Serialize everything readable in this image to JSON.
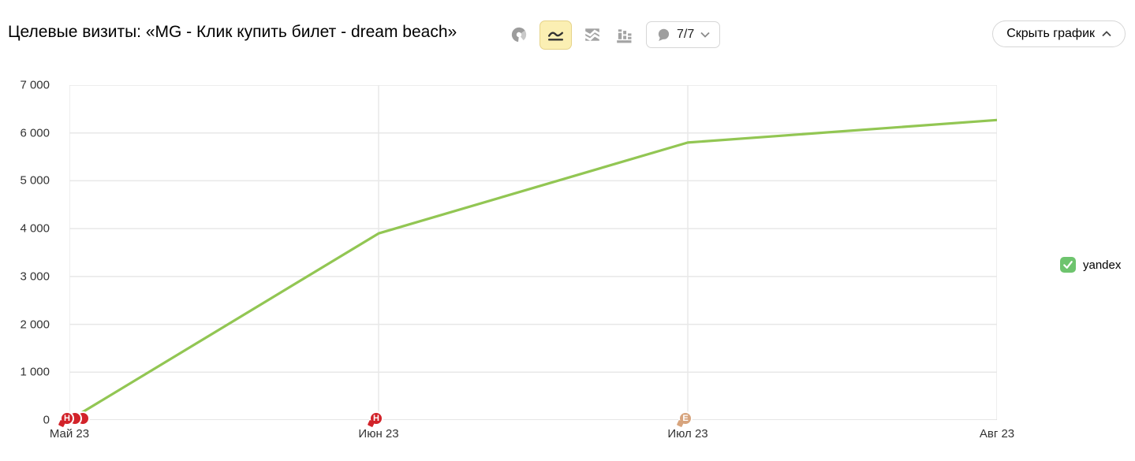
{
  "header": {
    "title": "Целевые визиты: «MG - Клик купить билет - dream beach»",
    "toolbar": {
      "chart_type_buttons": [
        {
          "name": "pie-chart",
          "active": false
        },
        {
          "name": "line-chart",
          "active": true
        },
        {
          "name": "stacked-area-chart",
          "active": false
        },
        {
          "name": "bar-chart",
          "active": false
        }
      ],
      "comments_dropdown_label": "7/7",
      "hide_chart_button_label": "Скрыть график"
    }
  },
  "legend": {
    "items": [
      {
        "label": "yandex",
        "checked": true,
        "color": "#6ec46e"
      }
    ]
  },
  "chart_data": {
    "type": "line",
    "title": "Целевые визиты: «MG - Клик купить билет - dream beach»",
    "x": [
      "Май 23",
      "Июн 23",
      "Июл 23",
      "Авг 23"
    ],
    "series": [
      {
        "name": "yandex",
        "color": "#92c653",
        "values": [
          0,
          3900,
          5800,
          6270
        ]
      }
    ],
    "ylim": [
      0,
      7000
    ],
    "ytick_step": 1000,
    "ytick_labels": [
      "0",
      "1 000",
      "2 000",
      "3 000",
      "4 000",
      "5 000",
      "6 000",
      "7 000"
    ],
    "grid": true,
    "legend_position": "right",
    "comment_markers": [
      {
        "x_index": 0,
        "letter": "Н",
        "color": "#d2232a",
        "count": 3
      },
      {
        "x_index": 1,
        "letter": "Н",
        "color": "#d2232a",
        "count": 1
      },
      {
        "x_index": 2,
        "letter": "Е",
        "color": "#d7a47d",
        "count": 1
      }
    ],
    "grid_color": "#e8e8e8",
    "axis_color": "#dedede"
  }
}
